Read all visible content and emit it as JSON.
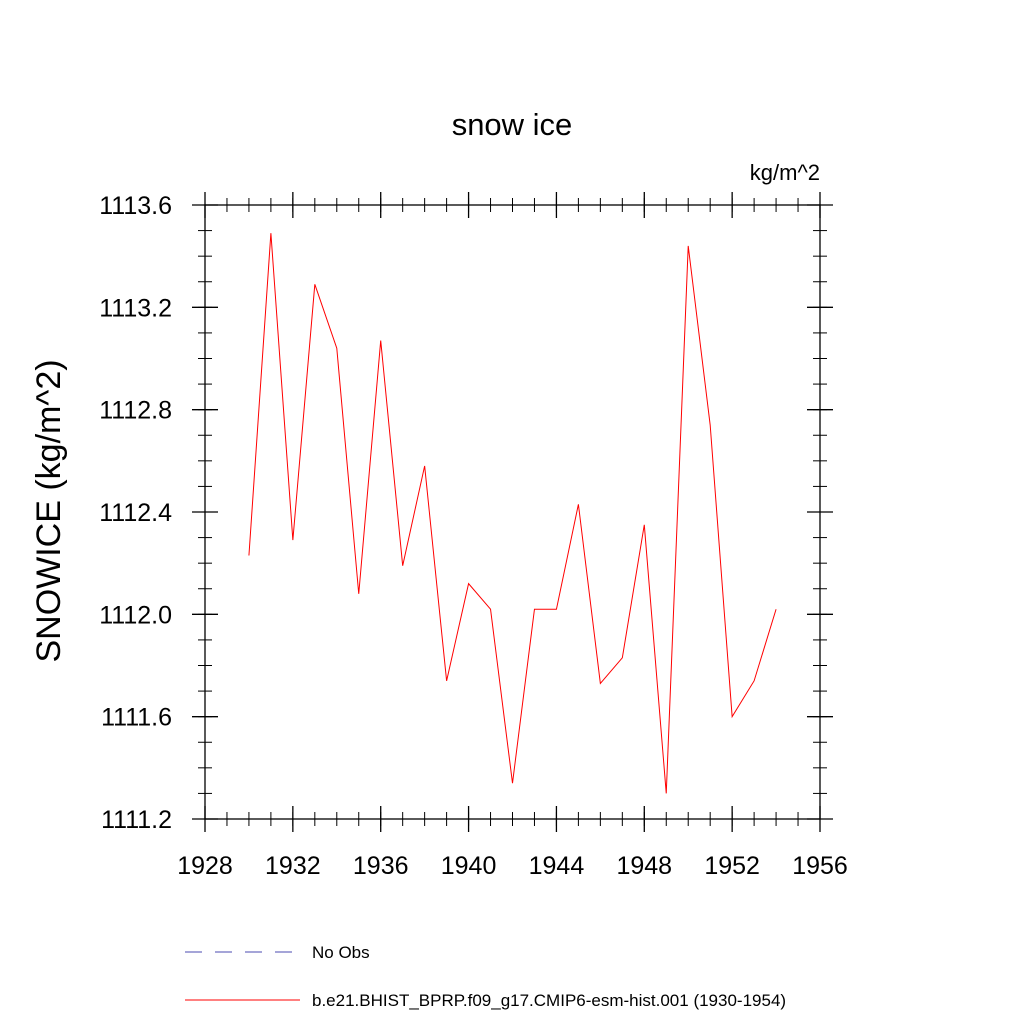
{
  "chart_data": {
    "type": "line",
    "title": "snow ice",
    "units_label": "kg/m^2",
    "ylabel": "SNOWICE  (kg/m^2)",
    "xlabel": "",
    "xlim": [
      1928,
      1956
    ],
    "ylim": [
      1111.2,
      1113.6
    ],
    "x_ticks": [
      1928,
      1932,
      1936,
      1940,
      1944,
      1948,
      1952,
      1956
    ],
    "x_tick_labels": [
      "1928",
      "1932",
      "1936",
      "1940",
      "1944",
      "1948",
      "1952",
      "1956"
    ],
    "y_ticks": [
      1111.2,
      1111.6,
      1112.0,
      1112.4,
      1112.8,
      1113.2,
      1113.6
    ],
    "y_tick_labels": [
      "1111.2",
      "1111.6",
      "1112.0",
      "1112.4",
      "1112.8",
      "1113.2",
      "1113.6"
    ],
    "x_minor_step": 1,
    "y_minor_step": 0.1,
    "grid": false,
    "legend_position": "bottom",
    "series": [
      {
        "name": "No Obs",
        "color": "#4b4bb0",
        "dash": "dashed",
        "x": [],
        "y": []
      },
      {
        "name": "b.e21.BHIST_BPRP.f09_g17.CMIP6-esm-hist.001 (1930-1954)",
        "color": "#ff0000",
        "dash": "solid",
        "x": [
          1930,
          1931,
          1932,
          1933,
          1934,
          1935,
          1936,
          1937,
          1938,
          1939,
          1940,
          1941,
          1942,
          1943,
          1944,
          1945,
          1946,
          1947,
          1948,
          1949,
          1950,
          1951,
          1952,
          1953,
          1954
        ],
        "y": [
          1112.23,
          1113.49,
          1112.29,
          1113.29,
          1113.04,
          1112.08,
          1113.07,
          1112.19,
          1112.58,
          1111.74,
          1112.12,
          1112.02,
          1111.34,
          1112.02,
          1112.02,
          1112.43,
          1111.73,
          1111.83,
          1112.35,
          1111.3,
          1113.44,
          1112.74,
          1111.6,
          1111.74,
          1112.02
        ]
      }
    ]
  }
}
